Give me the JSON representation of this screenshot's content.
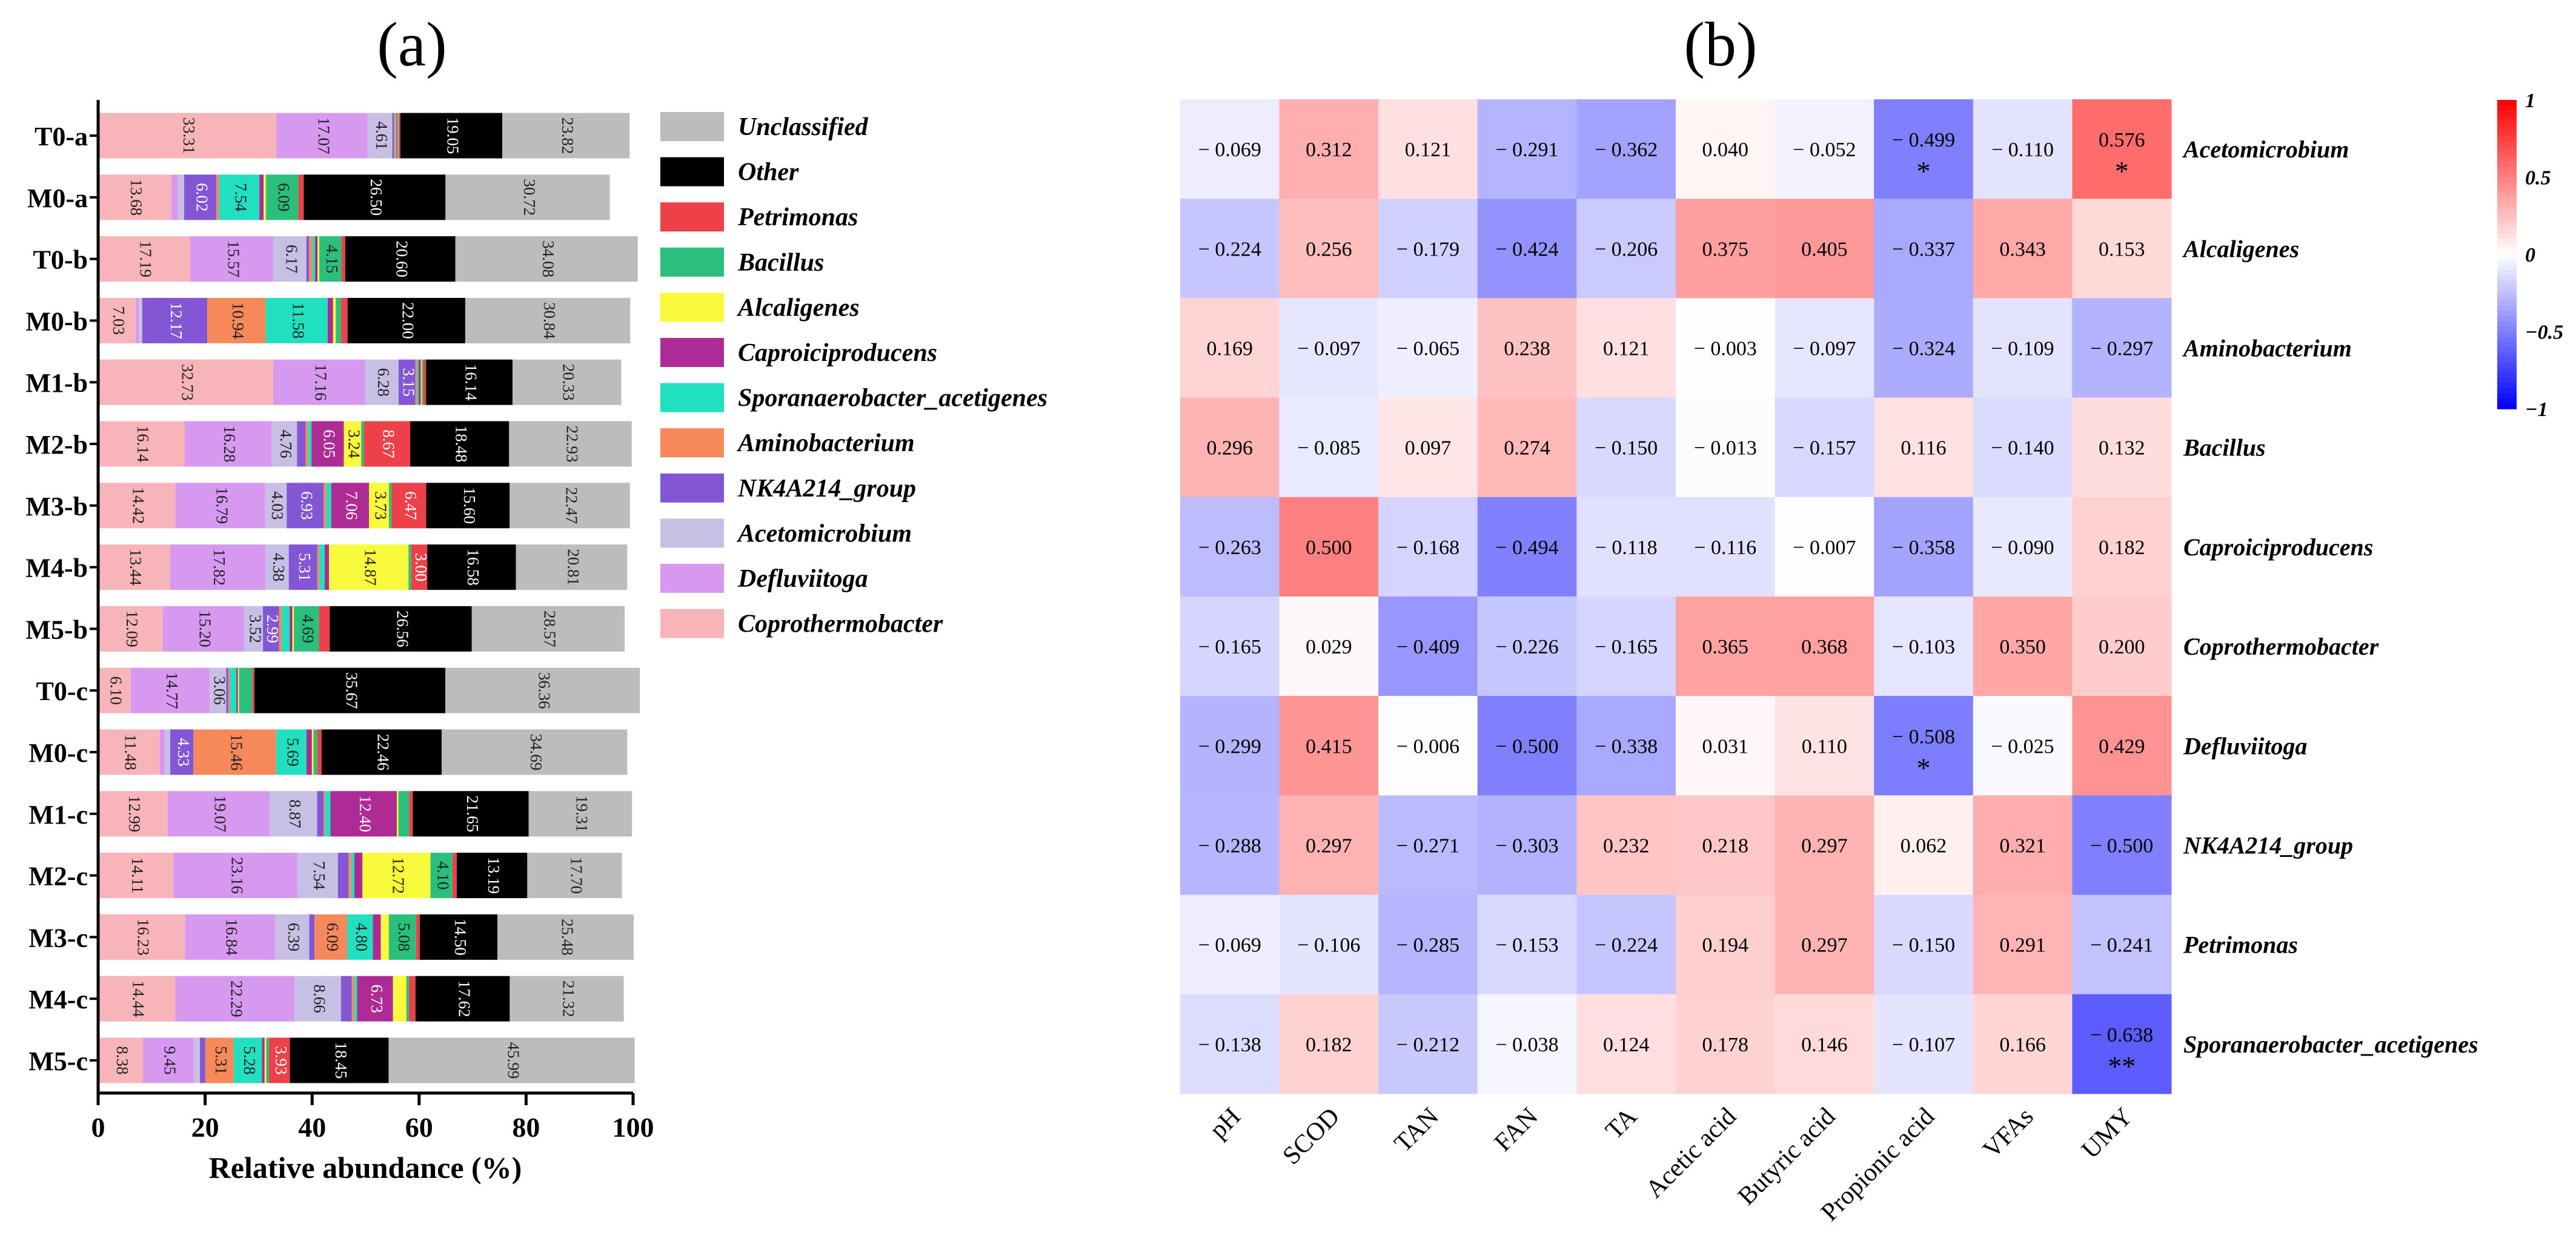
{
  "chart_data": [
    {
      "type": "bar",
      "orientation": "horizontal",
      "stacked": true,
      "panel_label": "(a)",
      "xlabel": "Relative abundance (%)",
      "ylabel": "",
      "xlim": [
        0,
        100
      ],
      "x_ticks": [
        "0",
        "20",
        "40",
        "60",
        "80",
        "100"
      ],
      "legend_position": "right",
      "legend": [
        "Unclassified",
        "Other",
        "Petrimonas",
        "Bacillus",
        "Alcaligenes",
        "Caproiciproducens",
        "Sporanaerobacter_acetigenes",
        "Aminobacterium",
        "NK4A214_group",
        "Acetomicrobium",
        "Defluviitoga",
        "Coprothermobacter"
      ],
      "stack_order": [
        "Coprothermobacter",
        "Defluviitoga",
        "Acetomicrobium",
        "NK4A214_group",
        "Aminobacterium",
        "Sporanaerobacter_acetigenes",
        "Caproiciproducens",
        "Alcaligenes",
        "Bacillus",
        "Petrimonas",
        "Other",
        "Unclassified"
      ],
      "colors": {
        "Coprothermobacter": "#f8b5b9",
        "Defluviitoga": "#d798f0",
        "Acetomicrobium": "#c8c0e4",
        "NK4A214_group": "#8356d6",
        "Aminobacterium": "#f5895a",
        "Sporanaerobacter_acetigenes": "#20e0bf",
        "Caproiciproducens": "#ae2b95",
        "Alcaligenes": "#fafa3c",
        "Bacillus": "#2abf7c",
        "Petrimonas": "#ec4149",
        "Other": "#000000",
        "Unclassified": "#bcbcbc"
      },
      "categories": [
        "T0-a",
        "M0-a",
        "T0-b",
        "M0-b",
        "M1-b",
        "M2-b",
        "M3-b",
        "M4-b",
        "M5-b",
        "T0-c",
        "M0-c",
        "M1-c",
        "M2-c",
        "M3-c",
        "M4-c",
        "M5-c"
      ],
      "series": [
        {
          "name": "Coprothermobacter",
          "values": [
            33.31,
            13.68,
            17.19,
            7.03,
            32.73,
            16.14,
            14.42,
            13.44,
            12.09,
            6.1,
            11.48,
            12.99,
            14.11,
            16.23,
            14.44,
            8.38
          ]
        },
        {
          "name": "Defluviitoga",
          "values": [
            17.07,
            1.2,
            15.57,
            0.6,
            17.16,
            16.28,
            16.79,
            17.82,
            15.2,
            14.77,
            1.0,
            19.07,
            23.16,
            16.84,
            22.29,
            9.45
          ]
        },
        {
          "name": "Acetomicrobium",
          "values": [
            4.61,
            1.2,
            6.17,
            0.6,
            6.28,
            4.76,
            4.03,
            4.38,
            3.52,
            3.06,
            1.0,
            8.87,
            7.54,
            6.39,
            8.66,
            1.2
          ]
        },
        {
          "name": "NK4A214_group",
          "values": [
            0.3,
            6.02,
            0.5,
            12.17,
            3.15,
            1.6,
            6.93,
            5.31,
            2.99,
            0.4,
            4.33,
            1.2,
            2.0,
            1.0,
            2.0,
            1.0
          ]
        },
        {
          "name": "Aminobacterium",
          "values": [
            0.3,
            0.5,
            0.6,
            10.94,
            0.3,
            0.5,
            0.5,
            0.4,
            0.5,
            0.3,
            15.46,
            0.3,
            0.5,
            6.09,
            0.5,
            5.31
          ]
        },
        {
          "name": "Sporanaerobacter_acetigenes",
          "values": [
            0.2,
            7.54,
            0.5,
            11.58,
            0.3,
            0.6,
            0.9,
            1.0,
            1.5,
            1.2,
            5.69,
            1.0,
            0.6,
            4.8,
            0.5,
            5.28
          ]
        },
        {
          "name": "Caproiciproducens",
          "values": [
            0.2,
            0.8,
            0.5,
            1.0,
            0.4,
            6.05,
            7.06,
            0.8,
            0.5,
            0.3,
            1.0,
            12.4,
            1.5,
            1.5,
            6.73,
            0.5
          ]
        },
        {
          "name": "Alcaligenes",
          "values": [
            0.1,
            0.4,
            0.3,
            0.5,
            0.2,
            3.24,
            3.73,
            14.87,
            0.3,
            0.2,
            0.3,
            0.3,
            12.72,
            1.5,
            2.5,
            0.3
          ]
        },
        {
          "name": "Bacillus",
          "values": [
            0.1,
            6.09,
            4.15,
            1.0,
            0.3,
            0.5,
            0.5,
            0.5,
            4.69,
            2.5,
            0.7,
            2.0,
            4.1,
            5.08,
            0.5,
            0.5
          ]
        },
        {
          "name": "Petrimonas",
          "values": [
            0.3,
            1.0,
            0.7,
            1.2,
            0.5,
            8.67,
            6.47,
            3.0,
            2.0,
            0.4,
            0.8,
            0.7,
            0.8,
            0.7,
            1.2,
            3.93
          ]
        },
        {
          "name": "Other",
          "values": [
            19.05,
            26.5,
            20.6,
            22.0,
            16.14,
            18.48,
            15.6,
            16.58,
            26.56,
            35.67,
            22.46,
            21.65,
            13.19,
            14.5,
            17.62,
            18.45
          ]
        },
        {
          "name": "Unclassified",
          "values": [
            23.82,
            30.72,
            34.08,
            30.84,
            20.33,
            22.93,
            22.47,
            20.81,
            28.57,
            36.36,
            34.69,
            19.31,
            17.7,
            25.48,
            21.32,
            45.99
          ]
        }
      ],
      "data_labels": [
        [
          [
            "Coprothermobacter",
            "33.31"
          ],
          [
            "Defluviitoga",
            "17.07"
          ],
          [
            "Acetomicrobium",
            "4.61"
          ],
          [
            "Other",
            "19.05"
          ],
          [
            "Unclassified",
            "23.82"
          ]
        ],
        [
          [
            "Coprothermobacter",
            "13.68"
          ],
          [
            "NK4A214_group",
            "6.02"
          ],
          [
            "Sporanaerobacter_acetigenes",
            "7.54"
          ],
          [
            "Bacillus",
            "6.09"
          ],
          [
            "Other",
            "26.50"
          ],
          [
            "Unclassified",
            "30.72"
          ]
        ],
        [
          [
            "Coprothermobacter",
            "17.19"
          ],
          [
            "Defluviitoga",
            "15.57"
          ],
          [
            "Acetomicrobium",
            "6.17"
          ],
          [
            "Bacillus",
            "4.15"
          ],
          [
            "Other",
            "20.60"
          ],
          [
            "Unclassified",
            "34.08"
          ]
        ],
        [
          [
            "Coprothermobacter",
            "7.03"
          ],
          [
            "NK4A214_group",
            "12.17"
          ],
          [
            "Aminobacterium",
            "10.94"
          ],
          [
            "Sporanaerobacter_acetigenes",
            "11.58"
          ],
          [
            "Other",
            "22.00"
          ],
          [
            "Unclassified",
            "30.84"
          ]
        ],
        [
          [
            "Coprothermobacter",
            "32.73"
          ],
          [
            "Defluviitoga",
            "17.16"
          ],
          [
            "Acetomicrobium",
            "6.28"
          ],
          [
            "NK4A214_group",
            "3.15"
          ],
          [
            "Other",
            "16.14"
          ],
          [
            "Unclassified",
            "20.33"
          ]
        ],
        [
          [
            "Coprothermobacter",
            "16.14"
          ],
          [
            "Defluviitoga",
            "16.28"
          ],
          [
            "Acetomicrobium",
            "4.76"
          ],
          [
            "Caproiciproducens",
            "6.05"
          ],
          [
            "Alcaligenes",
            "3.24"
          ],
          [
            "Petrimonas",
            "8.67"
          ],
          [
            "Other",
            "18.48"
          ],
          [
            "Unclassified",
            "22.93"
          ]
        ],
        [
          [
            "Coprothermobacter",
            "14.42"
          ],
          [
            "Defluviitoga",
            "16.79"
          ],
          [
            "Acetomicrobium",
            "4.03"
          ],
          [
            "NK4A214_group",
            "6.93"
          ],
          [
            "Caproiciproducens",
            "7.06"
          ],
          [
            "Alcaligenes",
            "3.73"
          ],
          [
            "Petrimonas",
            "6.47"
          ],
          [
            "Other",
            "15.60"
          ],
          [
            "Unclassified",
            "22.47"
          ]
        ],
        [
          [
            "Coprothermobacter",
            "13.44"
          ],
          [
            "Defluviitoga",
            "17.82"
          ],
          [
            "Acetomicrobium",
            "4.38"
          ],
          [
            "NK4A214_group",
            "5.31"
          ],
          [
            "Alcaligenes",
            "14.87"
          ],
          [
            "Petrimonas",
            "3.00"
          ],
          [
            "Other",
            "16.58"
          ],
          [
            "Unclassified",
            "20.81"
          ]
        ],
        [
          [
            "Coprothermobacter",
            "12.09"
          ],
          [
            "Defluviitoga",
            "15.20"
          ],
          [
            "Acetomicrobium",
            "3.52"
          ],
          [
            "NK4A214_group",
            "2.99"
          ],
          [
            "Bacillus",
            "4.69"
          ],
          [
            "Other",
            "26.56"
          ],
          [
            "Unclassified",
            "28.57"
          ]
        ],
        [
          [
            "Coprothermobacter",
            "6.10"
          ],
          [
            "Defluviitoga",
            "14.77"
          ],
          [
            "Acetomicrobium",
            "3.06"
          ],
          [
            "Other",
            "35.67"
          ],
          [
            "Unclassified",
            "36.36"
          ]
        ],
        [
          [
            "Coprothermobacter",
            "11.48"
          ],
          [
            "NK4A214_group",
            "4.33"
          ],
          [
            "Aminobacterium",
            "15.46"
          ],
          [
            "Sporanaerobacter_acetigenes",
            "5.69"
          ],
          [
            "Other",
            "22.46"
          ],
          [
            "Unclassified",
            "34.69"
          ]
        ],
        [
          [
            "Coprothermobacter",
            "12.99"
          ],
          [
            "Defluviitoga",
            "19.07"
          ],
          [
            "Acetomicrobium",
            "8.87"
          ],
          [
            "Caproiciproducens",
            "12.40"
          ],
          [
            "Other",
            "21.65"
          ],
          [
            "Unclassified",
            "19.31"
          ]
        ],
        [
          [
            "Coprothermobacter",
            "14.11"
          ],
          [
            "Defluviitoga",
            "23.16"
          ],
          [
            "Acetomicrobium",
            "7.54"
          ],
          [
            "Alcaligenes",
            "12.72"
          ],
          [
            "Bacillus",
            "4.10"
          ],
          [
            "Other",
            "13.19"
          ],
          [
            "Unclassified",
            "17.70"
          ]
        ],
        [
          [
            "Coprothermobacter",
            "16.23"
          ],
          [
            "Defluviitoga",
            "16.84"
          ],
          [
            "Acetomicrobium",
            "6.39"
          ],
          [
            "Aminobacterium",
            "6.09"
          ],
          [
            "Sporanaerobacter_acetigenes",
            "4.80"
          ],
          [
            "Bacillus",
            "5.08"
          ],
          [
            "Other",
            "14.50"
          ],
          [
            "Unclassified",
            "25.48"
          ]
        ],
        [
          [
            "Coprothermobacter",
            "14.44"
          ],
          [
            "Defluviitoga",
            "22.29"
          ],
          [
            "Acetomicrobium",
            "8.66"
          ],
          [
            "Caproiciproducens",
            "6.73"
          ],
          [
            "Other",
            "17.62"
          ],
          [
            "Unclassified",
            "21.32"
          ]
        ],
        [
          [
            "Coprothermobacter",
            "8.38"
          ],
          [
            "Defluviitoga",
            "9.45"
          ],
          [
            "Aminobacterium",
            "5.31"
          ],
          [
            "Sporanaerobacter_acetigenes",
            "5.28"
          ],
          [
            "Petrimonas",
            "3.93"
          ],
          [
            "Other",
            "18.45"
          ],
          [
            "Unclassified",
            "45.99"
          ]
        ]
      ]
    },
    {
      "type": "heatmap",
      "panel_label": "(b)",
      "title": "",
      "xlabel": "",
      "ylabel": "",
      "x": [
        "pH",
        "SCOD",
        "TAN",
        "FAN",
        "TA",
        "Acetic acid",
        "Butyric acid",
        "Propionic acid",
        "VFAs",
        "UMY"
      ],
      "y": [
        "Acetomicrobium",
        "Alcaligenes",
        "Aminobacterium",
        "Bacillus",
        "Caproiciproducens",
        "Coprothermobacter",
        "Defluviitoga",
        "NK4A214_group",
        "Petrimonas",
        "Sporanaerobacter_acetigenes"
      ],
      "values": [
        [
          -0.069,
          0.312,
          0.121,
          -0.291,
          -0.362,
          0.04,
          -0.052,
          -0.499,
          -0.11,
          0.576
        ],
        [
          -0.224,
          0.256,
          -0.179,
          -0.424,
          -0.206,
          0.375,
          0.405,
          -0.337,
          0.343,
          0.153
        ],
        [
          0.169,
          -0.097,
          -0.065,
          0.238,
          0.121,
          -0.003,
          -0.097,
          -0.324,
          -0.109,
          -0.297
        ],
        [
          0.296,
          -0.085,
          0.097,
          0.274,
          -0.15,
          -0.013,
          -0.157,
          0.116,
          -0.14,
          0.132
        ],
        [
          -0.263,
          0.5,
          -0.168,
          -0.494,
          -0.118,
          -0.116,
          -0.007,
          -0.358,
          -0.09,
          0.182
        ],
        [
          -0.165,
          0.029,
          -0.409,
          -0.226,
          -0.165,
          0.365,
          0.368,
          -0.103,
          0.35,
          0.2
        ],
        [
          -0.299,
          0.415,
          -0.006,
          -0.5,
          -0.338,
          0.031,
          0.11,
          -0.508,
          -0.025,
          0.429
        ],
        [
          -0.288,
          0.297,
          -0.271,
          -0.303,
          0.232,
          0.218,
          0.297,
          0.062,
          0.321,
          -0.5
        ],
        [
          -0.069,
          -0.106,
          -0.285,
          -0.153,
          -0.224,
          0.194,
          0.297,
          -0.15,
          0.291,
          -0.241
        ],
        [
          -0.138,
          0.182,
          -0.212,
          -0.038,
          0.124,
          0.178,
          0.146,
          -0.107,
          0.166,
          -0.638
        ]
      ],
      "significance": [
        [
          "",
          "",
          "",
          "",
          "",
          "",
          "",
          "*",
          "",
          "*"
        ],
        [
          "",
          "",
          "",
          "",
          "",
          "",
          "",
          "",
          "",
          ""
        ],
        [
          "",
          "",
          "",
          "",
          "",
          "",
          "",
          "",
          "",
          ""
        ],
        [
          "",
          "",
          "",
          "",
          "",
          "",
          "",
          "",
          "",
          ""
        ],
        [
          "",
          "",
          "",
          "",
          "",
          "",
          "",
          "",
          "",
          ""
        ],
        [
          "",
          "",
          "",
          "",
          "",
          "",
          "",
          "",
          "",
          ""
        ],
        [
          "",
          "",
          "",
          "",
          "",
          "",
          "",
          "*",
          "",
          ""
        ],
        [
          "",
          "",
          "",
          "",
          "",
          "",
          "",
          "",
          "",
          ""
        ],
        [
          "",
          "",
          "",
          "",
          "",
          "",
          "",
          "",
          "",
          ""
        ],
        [
          "",
          "",
          "",
          "",
          "",
          "",
          "",
          "",
          "",
          "**"
        ]
      ],
      "colorbar": {
        "range": [
          -1,
          1
        ],
        "ticks": [
          "1",
          "0.5",
          "0",
          "−0.5",
          "−1"
        ],
        "colors": {
          "low": "#0000ff",
          "mid": "#ffffff",
          "high": "#ff0000"
        }
      }
    }
  ]
}
